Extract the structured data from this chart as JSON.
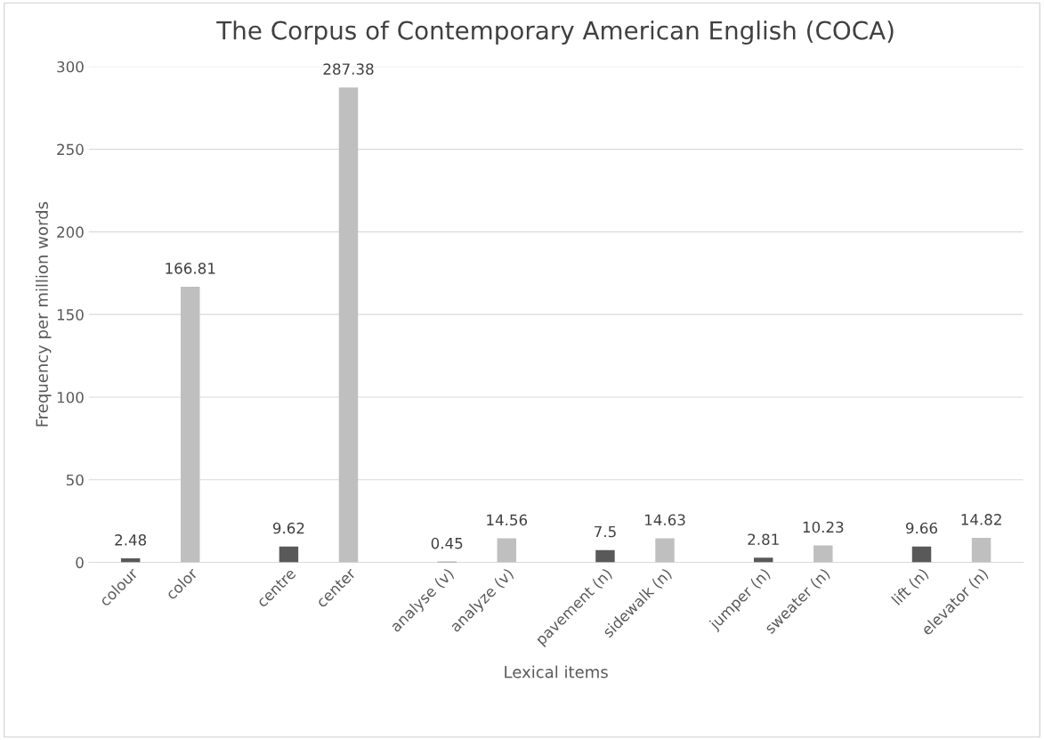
{
  "chart_data": {
    "type": "bar",
    "title": "The Corpus of Contemporary American English (COCA)",
    "xlabel": "Lexical items",
    "ylabel": "Frequency per million words",
    "categories": [
      "colour",
      "color",
      "centre",
      "center",
      "analyse (v)",
      "analyze (v)",
      "pavement (n)",
      "sidewalk (n)",
      "jumper (n)",
      "sweater (n)",
      "lift (n)",
      "elevator (n)"
    ],
    "values": [
      2.48,
      166.81,
      9.62,
      287.38,
      0.45,
      14.56,
      7.5,
      14.63,
      2.81,
      10.23,
      9.66,
      14.82
    ],
    "colors": [
      "#595959",
      "#bfbfbf",
      "#595959",
      "#bfbfbf",
      "#595959",
      "#bfbfbf",
      "#595959",
      "#bfbfbf",
      "#595959",
      "#bfbfbf",
      "#595959",
      "#bfbfbf"
    ],
    "ylim": [
      0,
      300
    ],
    "yticks": [
      0,
      50,
      100,
      150,
      200,
      250,
      300
    ],
    "grid": "y",
    "data_labels": true,
    "legend": false
  }
}
